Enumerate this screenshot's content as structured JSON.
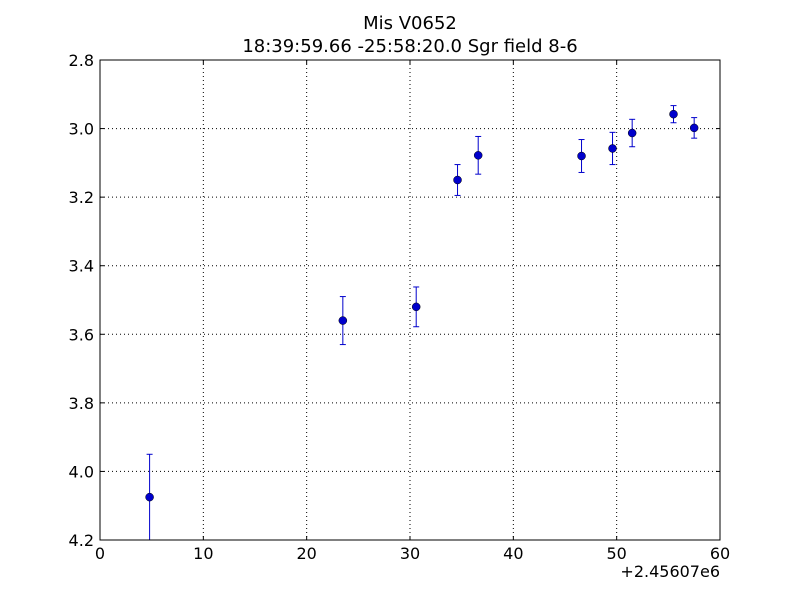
{
  "chart_data": {
    "type": "scatter",
    "title": "Mis V0652",
    "subtitle": "18:39:59.66 -25:58:20.0 Sgr field 8-6",
    "xlabel": "",
    "ylabel": "",
    "x_offset_label": "+2.45607e6",
    "xlim": [
      0,
      60
    ],
    "ylim": [
      2.8,
      4.2
    ],
    "y_inverted": true,
    "grid": true,
    "x_ticks": [
      "0",
      "10",
      "20",
      "30",
      "40",
      "50",
      "60"
    ],
    "y_ticks": [
      "2.8",
      "3.0",
      "3.2",
      "3.4",
      "3.6",
      "3.8",
      "4.0",
      "4.2"
    ],
    "marker_color": "#0000cc",
    "errorbar_color": "#0000cc",
    "series": [
      {
        "points": [
          {
            "x": 4.8,
            "y": 4.075,
            "err": 0.125
          },
          {
            "x": 23.5,
            "y": 3.56,
            "err": 0.07
          },
          {
            "x": 30.6,
            "y": 3.52,
            "err": 0.058
          },
          {
            "x": 34.6,
            "y": 3.15,
            "err": 0.045
          },
          {
            "x": 36.6,
            "y": 3.078,
            "err": 0.055
          },
          {
            "x": 46.6,
            "y": 3.08,
            "err": 0.048
          },
          {
            "x": 49.6,
            "y": 3.058,
            "err": 0.047
          },
          {
            "x": 51.5,
            "y": 3.013,
            "err": 0.04
          },
          {
            "x": 55.5,
            "y": 2.958,
            "err": 0.025
          },
          {
            "x": 57.5,
            "y": 2.998,
            "err": 0.03
          }
        ]
      }
    ]
  }
}
